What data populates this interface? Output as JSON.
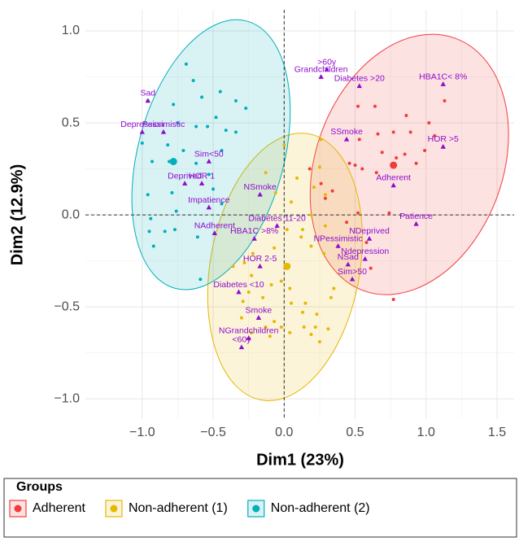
{
  "chart_data": {
    "type": "scatter",
    "xlabel": "Dim1 (23%)",
    "ylabel": "Dim2 (12.9%)",
    "xlim": [
      -1.4,
      1.62
    ],
    "ylim": [
      -1.11,
      1.115
    ],
    "xticks": [
      {
        "value": -1.0,
        "label": "−1.0"
      },
      {
        "value": -0.5,
        "label": "−0.5"
      },
      {
        "value": 0,
        "label": "0.0"
      },
      0.5,
      {
        "value": 1.0,
        "label": "1.0"
      },
      1.5
    ],
    "yticks": [
      {
        "value": -1.0,
        "label": "−1.0"
      },
      {
        "value": -0.5,
        "label": "−0.5"
      },
      {
        "value": 0,
        "label": "0.0"
      },
      0.5,
      {
        "value": 1.0,
        "label": "1.0"
      }
    ],
    "grid": true,
    "reference_lines": {
      "x": 0,
      "y": 0
    },
    "legend_title": "Groups",
    "legend_position": "bottom",
    "series": [
      {
        "name": "Adherent",
        "color": "#F23C3C",
        "x": [
          0.52,
          0.64,
          1.13,
          0.86,
          1.02,
          0.77,
          0.89,
          0.53,
          0.66,
          0.69,
          0.85,
          0.79,
          1.06,
          0.99,
          0.93,
          0.46,
          0.55,
          0.5,
          0.65,
          0.18,
          0.34,
          0.29,
          0.26,
          0.52,
          0.44,
          0.61,
          0.77,
          0.58,
          0.74
        ],
        "y": [
          0.59,
          0.59,
          0.62,
          0.54,
          0.5,
          0.45,
          0.45,
          0.41,
          0.44,
          0.34,
          0.33,
          0.31,
          0.43,
          0.35,
          0.28,
          0.28,
          0.25,
          0.27,
          0.23,
          0.25,
          0.13,
          0.09,
          0.17,
          0.01,
          -0.04,
          -0.29,
          -0.46,
          -0.15,
          0.01
        ],
        "mean": {
          "x": 0.77,
          "y": 0.27
        },
        "ellipse": {
          "cx": 0.882,
          "cy": 0.274,
          "rx": 0.659,
          "ry": 0.73,
          "angle": 20
        }
      },
      {
        "name": "Non-adherent (1)",
        "color": "#E7B800",
        "x": [
          0.0,
          0.26,
          0.25,
          -0.13,
          0.09,
          -0.06,
          0.29,
          0.21,
          0.05,
          0.19,
          0.29,
          0.13,
          0.02,
          0.12,
          0.19,
          -0.07,
          -0.22,
          0.28,
          -0.28,
          -0.36,
          -0.02,
          -0.09,
          0.04,
          -0.23,
          0.35,
          -0.25,
          -0.29,
          -0.15,
          0.15,
          0.05,
          0.13,
          0.23,
          0.33,
          -0.3,
          -0.07,
          -0.13,
          -0.02,
          0.04,
          0.14,
          0.22,
          -0.1,
          0.19,
          0.25,
          -0.23,
          0.31
        ],
        "y": [
          0.38,
          0.41,
          0.26,
          0.23,
          0.2,
          0.12,
          0.11,
          0.15,
          0.07,
          0.0,
          -0.06,
          -0.08,
          -0.08,
          -0.12,
          -0.17,
          -0.18,
          -0.21,
          -0.21,
          -0.26,
          -0.28,
          -0.36,
          -0.38,
          -0.4,
          -0.33,
          -0.4,
          -0.42,
          -0.47,
          -0.45,
          -0.48,
          -0.48,
          -0.53,
          -0.54,
          -0.45,
          -0.56,
          -0.58,
          -0.61,
          -0.61,
          -0.64,
          -0.61,
          -0.61,
          -0.66,
          -0.65,
          -0.69,
          -0.64,
          -0.62
        ],
        "mean": {
          "x": 0.02,
          "y": -0.28
        },
        "ellipse": {
          "cx": 0.006,
          "cy": -0.283,
          "rx": 0.527,
          "ry": 0.735,
          "angle": 10
        }
      },
      {
        "name": "Non-adherent (2)",
        "color": "#00AFBB",
        "x": [
          -0.69,
          -0.64,
          -0.96,
          -0.78,
          -0.58,
          -0.45,
          -0.34,
          -0.27,
          -0.48,
          -0.75,
          -0.62,
          -0.54,
          -0.41,
          -0.34,
          -1.0,
          -0.82,
          -0.71,
          -0.93,
          -0.81,
          -0.62,
          -0.53,
          -0.5,
          -0.96,
          -0.79,
          -0.44,
          -0.94,
          -0.76,
          -0.61,
          -0.95,
          -0.84,
          -0.77,
          -0.92,
          -0.59,
          -0.44
        ],
        "y": [
          0.82,
          0.73,
          0.62,
          0.6,
          0.64,
          0.67,
          0.62,
          0.58,
          0.53,
          0.5,
          0.48,
          0.48,
          0.46,
          0.45,
          0.39,
          0.38,
          0.35,
          0.29,
          0.29,
          0.28,
          0.22,
          0.14,
          0.11,
          0.12,
          0.06,
          -0.02,
          0.02,
          -0.12,
          -0.09,
          -0.09,
          -0.08,
          -0.17,
          -0.35,
          0.35
        ],
        "mean": {
          "x": -0.78,
          "y": 0.29
        },
        "ellipse": {
          "cx": -0.515,
          "cy": 0.327,
          "rx": 0.515,
          "ry": 0.752,
          "angle": 15
        }
      }
    ],
    "variables": {
      "color": "#8E0CCB",
      "labels": [
        "Sad",
        "Depression",
        "Pessimistic",
        "Deprived",
        "HOR 1",
        "Sim<50",
        "Impatience",
        "NAdherent",
        "NSmoke",
        "Diabetes 11-20",
        "HBA1C >8%",
        "HOR 2-5",
        "Diabetes <10",
        "Smoke",
        "NGrandchildren",
        "<60y",
        ">60y",
        "Grandchildren",
        "Diabetes >20",
        "HBA1C< 8%",
        "SSmoke",
        "HOR >5",
        "Adherent",
        "Patience",
        "NPessimistic",
        "NDeprived",
        "Ndepression",
        "NSad",
        "Sim>50"
      ],
      "x": [
        -0.96,
        -1.0,
        -0.85,
        -0.7,
        -0.58,
        -0.53,
        -0.53,
        -0.49,
        -0.17,
        -0.05,
        -0.21,
        -0.17,
        -0.32,
        -0.18,
        -0.25,
        -0.3,
        0.3,
        0.26,
        0.53,
        1.12,
        0.44,
        1.12,
        0.77,
        0.93,
        0.38,
        0.6,
        0.57,
        0.45,
        0.48
      ],
      "y": [
        0.62,
        0.45,
        0.45,
        0.17,
        0.17,
        0.29,
        0.04,
        -0.1,
        0.11,
        -0.06,
        -0.13,
        -0.28,
        -0.42,
        -0.56,
        -0.67,
        -0.72,
        0.79,
        0.75,
        0.7,
        0.71,
        0.41,
        0.37,
        0.16,
        -0.05,
        -0.17,
        -0.13,
        -0.24,
        -0.27,
        -0.35
      ]
    }
  }
}
